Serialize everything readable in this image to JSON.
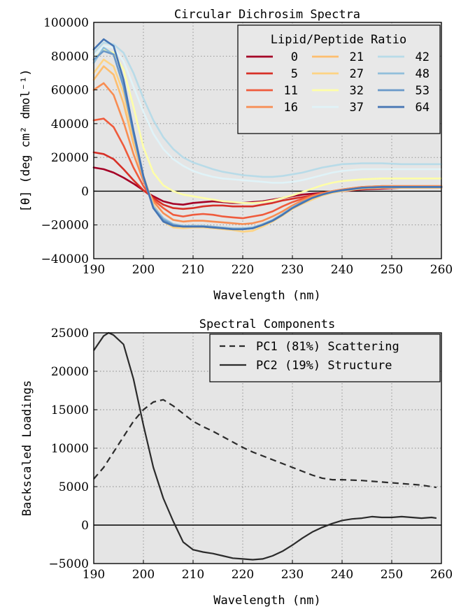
{
  "chart_data": [
    {
      "type": "line",
      "title": "Circular Dichrosim Spectra",
      "xlabel": "Wavelength (nm)",
      "ylabel": "[θ] (deg cm² dmol⁻¹)",
      "xlim": [
        190,
        260
      ],
      "ylim": [
        -40000,
        100000
      ],
      "xticks": [
        190,
        200,
        210,
        220,
        230,
        240,
        250,
        260
      ],
      "yticks": [
        -40000,
        -20000,
        0,
        20000,
        40000,
        60000,
        80000,
        100000
      ],
      "ytick_labels": [
        "−40000",
        "−20000",
        "0",
        "20000",
        "40000",
        "60000",
        "80000",
        "100000"
      ],
      "grid": true,
      "zero_line": true,
      "legend": {
        "title": "Lipid/Peptide Ratio",
        "placement": "top-right",
        "columns": 3
      },
      "x": [
        190,
        192,
        194,
        196,
        198,
        200,
        202,
        204,
        206,
        208,
        210,
        212,
        214,
        216,
        218,
        220,
        222,
        224,
        226,
        228,
        230,
        232,
        234,
        236,
        238,
        240,
        244,
        248,
        252,
        256,
        260
      ],
      "series": [
        {
          "name": "0",
          "color": "#a50026",
          "values": [
            14000,
            13000,
            11000,
            8000,
            4500,
            500,
            -3000,
            -6000,
            -7500,
            -8000,
            -7000,
            -6500,
            -6000,
            -6500,
            -7000,
            -7000,
            -6500,
            -6000,
            -5000,
            -4000,
            -3000,
            -2000,
            -1500,
            -1000,
            -500,
            0,
            1000,
            1500,
            2000,
            2000,
            2000
          ]
        },
        {
          "name": "5",
          "color": "#d73027",
          "values": [
            23000,
            22000,
            19000,
            13000,
            6500,
            500,
            -4000,
            -8000,
            -10000,
            -10500,
            -10000,
            -9000,
            -8500,
            -8500,
            -9000,
            -9000,
            -9000,
            -8000,
            -7000,
            -5500,
            -4500,
            -3500,
            -2500,
            -1500,
            -500,
            500,
            2000,
            2500,
            2500,
            2500,
            2500
          ]
        },
        {
          "name": "11",
          "color": "#ef5b3c",
          "values": [
            42000,
            43000,
            38000,
            27000,
            14000,
            3000,
            -5000,
            -10000,
            -14000,
            -15000,
            -14000,
            -13500,
            -14000,
            -15000,
            -15500,
            -16000,
            -15000,
            -14000,
            -12000,
            -9000,
            -6500,
            -4500,
            -2500,
            -1000,
            0,
            1000,
            2500,
            3000,
            3000,
            3000,
            3000
          ]
        },
        {
          "name": "16",
          "color": "#f88d52",
          "values": [
            60000,
            64000,
            57000,
            41000,
            22000,
            6000,
            -6000,
            -13000,
            -17000,
            -18000,
            -17500,
            -17500,
            -18000,
            -18500,
            -19000,
            -19500,
            -19000,
            -17500,
            -15000,
            -12000,
            -8500,
            -5500,
            -3000,
            -1500,
            0,
            1000,
            2500,
            3000,
            3000,
            3000,
            3000
          ]
        },
        {
          "name": "21",
          "color": "#fdbe6f",
          "values": [
            66000,
            74000,
            69000,
            52000,
            28000,
            8000,
            -8000,
            -17000,
            -20000,
            -21000,
            -20500,
            -20500,
            -21000,
            -21500,
            -22000,
            -22500,
            -22000,
            -20000,
            -17500,
            -14000,
            -10000,
            -7000,
            -4500,
            -2500,
            -1000,
            500,
            2000,
            2500,
            2500,
            2500,
            2500
          ]
        },
        {
          "name": "27",
          "color": "#fdd384",
          "values": [
            70000,
            78000,
            74000,
            58000,
            32000,
            9000,
            -8000,
            -18000,
            -21500,
            -22000,
            -21500,
            -21500,
            -22000,
            -22500,
            -23000,
            -24000,
            -23500,
            -21000,
            -18000,
            -14500,
            -10500,
            -7500,
            -5000,
            -2500,
            -1000,
            0,
            1500,
            2000,
            2000,
            2000,
            2000
          ]
        },
        {
          "name": "32",
          "color": "#fefea8",
          "values": [
            78000,
            84000,
            82000,
            72000,
            50000,
            26000,
            11000,
            3500,
            0,
            -2000,
            -3000,
            -4000,
            -5000,
            -6000,
            -6500,
            -7000,
            -7000,
            -6500,
            -5500,
            -4000,
            -2500,
            -500,
            1500,
            3500,
            5000,
            6000,
            7000,
            7500,
            7500,
            7500,
            7500
          ]
        },
        {
          "name": "37",
          "color": "#e0f3f8",
          "values": [
            80000,
            86000,
            85000,
            77000,
            62000,
            47000,
            34000,
            25000,
            19000,
            15000,
            12000,
            10000,
            8500,
            7500,
            7000,
            6500,
            6000,
            5500,
            5000,
            5000,
            5500,
            6500,
            8000,
            9500,
            11000,
            12000,
            13000,
            13000,
            13000,
            13000,
            13000
          ]
        },
        {
          "name": "42",
          "color": "#b8dbe8",
          "values": [
            82000,
            88000,
            87000,
            82000,
            70000,
            55000,
            42000,
            32000,
            25000,
            20000,
            17000,
            15000,
            13000,
            11500,
            10500,
            9500,
            9000,
            8500,
            8500,
            9000,
            10000,
            11000,
            12500,
            14000,
            15000,
            16000,
            16500,
            16500,
            16000,
            16000,
            16000
          ]
        },
        {
          "name": "48",
          "color": "#91bfdb",
          "values": [
            76000,
            85000,
            81000,
            62000,
            34000,
            8000,
            -9000,
            -16000,
            -19500,
            -20500,
            -20500,
            -20500,
            -21000,
            -21500,
            -22000,
            -22000,
            -21500,
            -19500,
            -17000,
            -13500,
            -9500,
            -6500,
            -4000,
            -2000,
            -500,
            500,
            2000,
            2500,
            2500,
            2500,
            2500
          ]
        },
        {
          "name": "53",
          "color": "#6a99c9",
          "values": [
            78000,
            83000,
            81000,
            62000,
            34000,
            8000,
            -10000,
            -17000,
            -20000,
            -21000,
            -21000,
            -21000,
            -21500,
            -22000,
            -22500,
            -22500,
            -22000,
            -20000,
            -17500,
            -14000,
            -10000,
            -6500,
            -4000,
            -2000,
            -500,
            500,
            2000,
            2500,
            2500,
            2500,
            2500
          ]
        },
        {
          "name": "64",
          "color": "#4575b4",
          "values": [
            84000,
            90000,
            86000,
            66000,
            36000,
            9000,
            -10000,
            -18000,
            -20500,
            -21000,
            -21000,
            -21000,
            -21500,
            -22000,
            -22500,
            -22500,
            -22000,
            -20000,
            -17500,
            -14000,
            -10000,
            -7000,
            -4000,
            -2000,
            -500,
            500,
            2000,
            2500,
            2500,
            2500,
            2500
          ]
        }
      ]
    },
    {
      "type": "line",
      "title": "Spectral Components",
      "xlabel": "Wavelength (nm)",
      "ylabel": "Backscaled Loadings",
      "xlim": [
        190,
        260
      ],
      "ylim": [
        -5000,
        25000
      ],
      "xticks": [
        190,
        200,
        210,
        220,
        230,
        240,
        250,
        260
      ],
      "yticks": [
        -5000,
        0,
        5000,
        10000,
        15000,
        20000,
        25000
      ],
      "ytick_labels": [
        "−5000",
        "0",
        "5000",
        "10000",
        "15000",
        "20000",
        "25000"
      ],
      "grid": true,
      "zero_line": true,
      "legend": {
        "placement": "top-right",
        "columns": 1
      },
      "series": [
        {
          "name": "PC1 (81%) Scattering",
          "style": "dashed",
          "x": [
            190,
            192,
            194,
            196,
            198,
            200,
            202,
            204,
            206,
            208,
            210,
            212,
            214,
            216,
            218,
            220,
            222,
            224,
            226,
            228,
            230,
            232,
            234,
            236,
            238,
            240,
            244,
            248,
            252,
            256,
            259
          ],
          "values": [
            6000,
            7500,
            9500,
            11500,
            13500,
            15000,
            16000,
            16300,
            15500,
            14500,
            13500,
            12800,
            12200,
            11500,
            10800,
            10100,
            9500,
            9000,
            8500,
            8000,
            7500,
            7000,
            6500,
            6100,
            5900,
            5900,
            5800,
            5600,
            5400,
            5200,
            4900
          ]
        },
        {
          "name": "PC2 (19%) Structure",
          "style": "solid",
          "x": [
            190,
            192,
            193,
            194,
            196,
            198,
            200,
            202,
            204,
            206,
            208,
            210,
            212,
            214,
            216,
            218,
            220,
            222,
            224,
            226,
            228,
            230,
            232,
            234,
            236,
            238,
            240,
            242,
            244,
            246,
            248,
            250,
            252,
            254,
            256,
            258,
            259
          ],
          "values": [
            22700,
            24600,
            25000,
            24700,
            23500,
            19000,
            13000,
            7500,
            3500,
            500,
            -2200,
            -3200,
            -3500,
            -3700,
            -4000,
            -4300,
            -4400,
            -4500,
            -4400,
            -4000,
            -3400,
            -2600,
            -1700,
            -900,
            -300,
            200,
            600,
            800,
            900,
            1100,
            1000,
            1000,
            1100,
            1000,
            900,
            1000,
            900
          ]
        }
      ]
    }
  ]
}
